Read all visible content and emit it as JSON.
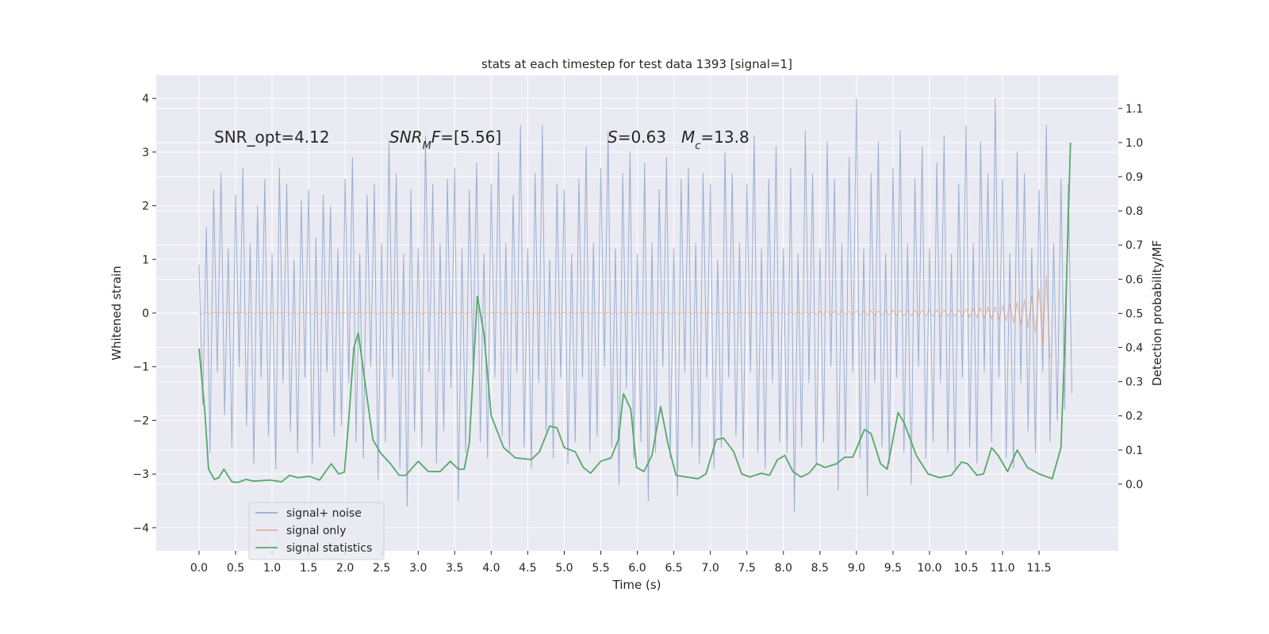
{
  "chart_data": {
    "type": "line",
    "title": "stats at each timestep for test data 1393 [signal=1]",
    "xlabel": "Time (s)",
    "ylabel": "Whitened strain",
    "y2label": "Detection probability/MF",
    "x": [
      0,
      0.05,
      0.1,
      0.15,
      0.2,
      0.25,
      0.3,
      0.35,
      0.4,
      0.45,
      0.5,
      0.55,
      0.6,
      0.65,
      0.7,
      0.75,
      0.8,
      0.85,
      0.9,
      0.95,
      1,
      1.05,
      1.1,
      1.15,
      1.2,
      1.25,
      1.3,
      1.35,
      1.4,
      1.45,
      1.5,
      1.55,
      1.6,
      1.65,
      1.7,
      1.75,
      1.8,
      1.85,
      1.9,
      1.95,
      2,
      2.05,
      2.1,
      2.15,
      2.2,
      2.25,
      2.3,
      2.35,
      2.4,
      2.45,
      2.5,
      2.55,
      2.6,
      2.65,
      2.7,
      2.75,
      2.8,
      2.85,
      2.9,
      2.95,
      3,
      3.05,
      3.1,
      3.15,
      3.2,
      3.25,
      3.3,
      3.35,
      3.4,
      3.45,
      3.5,
      3.55,
      3.6,
      3.65,
      3.7,
      3.75,
      3.8,
      3.85,
      3.9,
      3.95,
      4,
      4.05,
      4.1,
      4.15,
      4.2,
      4.25,
      4.3,
      4.35,
      4.4,
      4.45,
      4.5,
      4.55,
      4.6,
      4.65,
      4.7,
      4.75,
      4.8,
      4.85,
      4.9,
      4.95,
      5,
      5.05,
      5.1,
      5.15,
      5.2,
      5.25,
      5.3,
      5.35,
      5.4,
      5.45,
      5.5,
      5.55,
      5.6,
      5.65,
      5.7,
      5.75,
      5.8,
      5.85,
      5.9,
      5.95,
      6,
      6.05,
      6.1,
      6.15,
      6.2,
      6.25,
      6.3,
      6.35,
      6.4,
      6.45,
      6.5,
      6.55,
      6.6,
      6.65,
      6.7,
      6.75,
      6.8,
      6.85,
      6.9,
      6.95,
      7,
      7.05,
      7.1,
      7.15,
      7.2,
      7.25,
      7.3,
      7.35,
      7.4,
      7.45,
      7.5,
      7.55,
      7.6,
      7.65,
      7.7,
      7.75,
      7.8,
      7.85,
      7.9,
      7.95,
      8,
      8.05,
      8.1,
      8.15,
      8.2,
      8.25,
      8.3,
      8.35,
      8.4,
      8.45,
      8.5,
      8.55,
      8.6,
      8.65,
      8.7,
      8.75,
      8.8,
      8.85,
      8.9,
      8.95,
      9,
      9.05,
      9.1,
      9.15,
      9.2,
      9.25,
      9.3,
      9.35,
      9.4,
      9.45,
      9.5,
      9.55,
      9.6,
      9.65,
      9.7,
      9.75,
      9.8,
      9.85,
      9.9,
      9.95,
      10,
      10.05,
      10.1,
      10.15,
      10.2,
      10.25,
      10.3,
      10.35,
      10.4,
      10.45,
      10.5,
      10.55,
      10.6,
      10.65,
      10.7,
      10.75,
      10.8,
      10.85,
      10.9,
      10.95,
      11,
      11.05,
      11.1,
      11.15,
      11.2,
      11.25,
      11.3,
      11.35,
      11.4,
      11.45,
      11.5,
      11.55,
      11.6,
      11.65,
      11.7,
      11.75,
      11.8,
      11.85,
      11.9,
      11.95
    ],
    "series": [
      {
        "name": "signal+ noise",
        "color": "#4c72b0",
        "values": [
          0.9,
          -1.7,
          1.6,
          -2.6,
          2.3,
          -1.1,
          2.6,
          -1.9,
          1.2,
          -2.5,
          2.2,
          -1.0,
          2.7,
          -2.1,
          1.3,
          -2.8,
          2.0,
          -1.2,
          2.5,
          -2.3,
          1.1,
          -2.9,
          2.7,
          -1.3,
          2.4,
          -2.2,
          1.0,
          -2.6,
          2.1,
          -1.2,
          2.3,
          -2.8,
          1.4,
          -2.5,
          2.2,
          -1.1,
          2.0,
          -2.3,
          1.2,
          -2.1,
          2.5,
          -1.3,
          2.9,
          -2.4,
          1.1,
          -2.7,
          2.2,
          -1.0,
          2.4,
          -3.1,
          1.3,
          -2.4,
          3.2,
          -1.2,
          2.6,
          -2.9,
          1.1,
          -3.6,
          2.3,
          -2.2,
          1.2,
          -2.5,
          3.3,
          -1.1,
          2.4,
          -2.8,
          1.3,
          -2.2,
          2.5,
          -1.4,
          2.7,
          -3.5,
          1.2,
          -2.6,
          2.3,
          -1.0,
          2.8,
          -2.4,
          1.1,
          -2.7,
          2.4,
          -1.2,
          3.0,
          -2.3,
          1.3,
          -2.6,
          2.2,
          -1.1,
          3.5,
          -2.5,
          1.2,
          -2.9,
          2.6,
          -1.3,
          3.5,
          -2.2,
          1.0,
          -2.7,
          2.4,
          -1.2,
          2.3,
          -2.8,
          1.1,
          -2.4,
          2.5,
          -1.2,
          3.1,
          -2.6,
          1.3,
          -2.3,
          2.7,
          -1.0,
          3.4,
          -2.5,
          1.2,
          -3.2,
          2.6,
          -1.4,
          3.0,
          -2.7,
          1.1,
          -2.4,
          2.8,
          -3.5,
          1.3,
          -2.6,
          2.3,
          -1.0,
          2.9,
          -2.7,
          1.2,
          -3.4,
          2.5,
          -1.1,
          2.7,
          -2.5,
          1.3,
          -2.8,
          2.6,
          -1.2,
          2.4,
          -2.9,
          1.0,
          -2.5,
          3.0,
          -1.2,
          2.6,
          -2.3,
          1.3,
          -2.7,
          2.4,
          -1.1,
          3.3,
          -2.6,
          1.2,
          -2.9,
          2.5,
          -1.3,
          3.1,
          -2.4,
          1.2,
          -2.6,
          2.7,
          -3.7,
          1.1,
          -2.5,
          3.4,
          -1.3,
          2.6,
          -2.8,
          1.2,
          -2.4,
          3.2,
          -1.0,
          2.5,
          -3.3,
          1.3,
          -2.6,
          2.9,
          -1.1,
          4.0,
          -2.7,
          1.2,
          -3.4,
          2.6,
          -1.3,
          3.2,
          -2.5,
          1.1,
          -2.8,
          2.7,
          -1.2,
          3.4,
          -2.6,
          1.3,
          -3.2,
          2.5,
          -1.0,
          3.1,
          -2.7,
          1.2,
          -2.4,
          2.8,
          -1.3,
          3.3,
          -2.6,
          1.1,
          -2.9,
          2.4,
          -1.2,
          3.5,
          -2.5,
          1.3,
          -2.8,
          3.2,
          -1.1,
          2.6,
          -2.4,
          4.0,
          -1.2,
          2.5,
          -2.7,
          1.1,
          -2.9,
          3.0,
          -1.3,
          2.6,
          -2.2,
          1.2,
          -2.6,
          2.3,
          -1.1,
          3.5,
          -2.4,
          1.3,
          -2.0,
          2.5,
          -1.8,
          2.4,
          -1.5
        ]
      },
      {
        "name": "signal only",
        "color": "#dd8452",
        "values": [
          0.01,
          -0.01,
          0.01,
          -0.01,
          0.01,
          -0.01,
          0.01,
          -0.01,
          0.01,
          -0.01,
          0.01,
          -0.01,
          0.01,
          -0.01,
          0.01,
          -0.01,
          0.01,
          -0.01,
          0.01,
          -0.01,
          0.01,
          -0.01,
          0.01,
          -0.01,
          0.01,
          -0.01,
          0.01,
          -0.01,
          0.01,
          -0.01,
          0.01,
          -0.01,
          0.01,
          -0.01,
          0.01,
          -0.01,
          0.01,
          -0.01,
          0.01,
          -0.01,
          0.01,
          -0.01,
          0.01,
          -0.01,
          0.01,
          -0.01,
          0.01,
          -0.01,
          0.01,
          -0.01,
          0.01,
          -0.01,
          0.01,
          -0.01,
          0.01,
          -0.01,
          0.01,
          -0.01,
          0.01,
          -0.01,
          0.01,
          -0.01,
          0.01,
          -0.01,
          0.01,
          -0.01,
          0.01,
          -0.01,
          0.01,
          -0.01,
          0.01,
          -0.01,
          0.01,
          -0.01,
          0.01,
          -0.01,
          0.01,
          -0.01,
          0.01,
          -0.01,
          0.01,
          -0.01,
          0.01,
          -0.01,
          0.01,
          -0.01,
          0.01,
          -0.01,
          0.01,
          -0.01,
          0.01,
          -0.01,
          0.01,
          -0.01,
          0.01,
          -0.01,
          0.01,
          -0.01,
          0.01,
          -0.01,
          0.01,
          -0.01,
          0.01,
          -0.01,
          0.01,
          -0.01,
          0.01,
          -0.01,
          0.01,
          -0.01,
          0.01,
          -0.01,
          0.01,
          -0.01,
          0.01,
          -0.01,
          0.01,
          -0.01,
          0.01,
          -0.01,
          0.01,
          -0.01,
          0.01,
          -0.01,
          0.01,
          -0.01,
          0.01,
          -0.01,
          0.01,
          -0.01,
          0.01,
          -0.01,
          0.01,
          -0.01,
          0.01,
          -0.01,
          0.01,
          -0.01,
          0.01,
          -0.01,
          0.01,
          -0.01,
          0.01,
          -0.01,
          0.01,
          -0.01,
          0.01,
          -0.01,
          0.01,
          -0.01,
          0.01,
          -0.01,
          0.01,
          -0.01,
          0.01,
          -0.01,
          0.01,
          -0.01,
          0.01,
          -0.01,
          0.02,
          -0.02,
          0.02,
          -0.02,
          0.02,
          -0.02,
          0.02,
          -0.02,
          0.02,
          -0.02,
          0.03,
          -0.03,
          0.03,
          -0.03,
          0.03,
          -0.03,
          0.03,
          -0.03,
          0.03,
          -0.03,
          0.04,
          -0.04,
          0.04,
          -0.04,
          0.04,
          -0.04,
          0.04,
          -0.04,
          0.04,
          -0.04,
          0.05,
          -0.05,
          0.05,
          -0.05,
          0.05,
          -0.05,
          0.05,
          -0.05,
          0.05,
          -0.05,
          0.06,
          -0.06,
          0.06,
          -0.06,
          0.06,
          -0.06,
          0.06,
          -0.06,
          0.06,
          -0.06,
          0.08,
          -0.08,
          0.09,
          -0.09,
          0.1,
          -0.1,
          0.11,
          -0.11,
          0.12,
          -0.12,
          0.14,
          -0.15,
          0.17,
          -0.18,
          0.2,
          -0.22,
          0.25,
          -0.28,
          0.32,
          -0.38,
          0.45,
          -0.55,
          0.7,
          -0.85,
          null,
          null,
          null,
          null,
          null,
          null
        ]
      },
      {
        "name": "signal statistics",
        "color": "#55a868",
        "axis": "y2",
        "x": [
          0,
          0.08,
          0.13,
          0.21,
          0.27,
          0.34,
          0.45,
          0.53,
          0.64,
          0.75,
          0.97,
          1.13,
          1.24,
          1.35,
          1.51,
          1.65,
          1.81,
          1.91,
          1.99,
          2.05,
          2.12,
          2.18,
          2.27,
          2.38,
          2.49,
          2.62,
          2.74,
          2.83,
          3.0,
          3.14,
          3.3,
          3.44,
          3.55,
          3.63,
          3.7,
          3.81,
          3.9,
          4.0,
          4.17,
          4.33,
          4.55,
          4.66,
          4.8,
          4.9,
          5.0,
          5.15,
          5.26,
          5.36,
          5.5,
          5.64,
          5.74,
          5.81,
          5.91,
          5.99,
          6.09,
          6.2,
          6.32,
          6.42,
          6.53,
          6.67,
          6.83,
          6.94,
          7.08,
          7.18,
          7.32,
          7.43,
          7.54,
          7.7,
          7.81,
          7.92,
          8.02,
          8.13,
          8.24,
          8.35,
          8.46,
          8.57,
          8.73,
          8.84,
          8.95,
          9.11,
          9.2,
          9.33,
          9.42,
          9.57,
          9.66,
          9.82,
          9.98,
          10.14,
          10.3,
          10.44,
          10.52,
          10.65,
          10.74,
          10.85,
          10.94,
          11.07,
          11.2,
          11.34,
          11.5,
          11.68,
          11.8,
          11.85,
          11.93
        ],
        "values": [
          0.397,
          0.21,
          0.044,
          0.014,
          0.019,
          0.044,
          0.007,
          0.005,
          0.014,
          0.009,
          0.012,
          0.007,
          0.026,
          0.019,
          0.023,
          0.012,
          0.06,
          0.03,
          0.035,
          0.19,
          0.4,
          0.443,
          0.3,
          0.13,
          0.09,
          0.06,
          0.026,
          0.026,
          0.067,
          0.037,
          0.037,
          0.067,
          0.044,
          0.044,
          0.12,
          0.55,
          0.44,
          0.2,
          0.107,
          0.077,
          0.072,
          0.095,
          0.17,
          0.165,
          0.107,
          0.095,
          0.049,
          0.032,
          0.067,
          0.077,
          0.13,
          0.265,
          0.22,
          0.049,
          0.037,
          0.084,
          0.227,
          0.118,
          0.026,
          0.021,
          0.016,
          0.03,
          0.13,
          0.135,
          0.095,
          0.03,
          0.021,
          0.032,
          0.026,
          0.072,
          0.084,
          0.037,
          0.021,
          0.032,
          0.06,
          0.049,
          0.06,
          0.079,
          0.079,
          0.16,
          0.148,
          0.06,
          0.044,
          0.21,
          0.176,
          0.084,
          0.03,
          0.019,
          0.026,
          0.065,
          0.06,
          0.026,
          0.03,
          0.107,
          0.084,
          0.037,
          0.1,
          0.049,
          0.03,
          0.016,
          0.107,
          0.4,
          1.0
        ]
      }
    ],
    "xlim": [
      -0.586,
      12.585
    ],
    "ylim": [
      -4.43,
      4.43
    ],
    "y2lim": [
      -0.195,
      1.197
    ],
    "xticks": [
      {
        "value": 0,
        "label": "0.0"
      },
      0.5,
      {
        "value": 1,
        "label": "1.0"
      },
      1.5,
      {
        "value": 2,
        "label": "2.0"
      },
      2.5,
      {
        "value": 3,
        "label": "3.0"
      },
      3.5,
      {
        "value": 4,
        "label": "4.0"
      },
      4.5,
      {
        "value": 5,
        "label": "5.0"
      },
      5.5,
      {
        "value": 6,
        "label": "6.0"
      },
      6.5,
      {
        "value": 7,
        "label": "7.0"
      },
      7.5,
      {
        "value": 8,
        "label": "8.0"
      },
      8.5,
      {
        "value": 9,
        "label": "9.0"
      },
      9.5,
      {
        "value": 10,
        "label": "10.0"
      },
      10.5,
      {
        "value": 11,
        "label": "11.0"
      },
      11.5
    ],
    "yticks": [
      {
        "value": -4,
        "label": "−4"
      },
      {
        "value": -3,
        "label": "−3"
      },
      {
        "value": -2,
        "label": "−2"
      },
      {
        "value": -1,
        "label": "−1"
      },
      0,
      1,
      2,
      3,
      4
    ],
    "y2ticks": [
      {
        "value": 0,
        "label": "0.0"
      },
      0.1,
      0.2,
      0.3,
      0.4,
      0.5,
      0.6,
      0.7,
      0.8,
      0.9,
      {
        "value": 1,
        "label": "1.0"
      },
      1.1
    ],
    "grid": true,
    "legend": "lower left",
    "annotations": [
      [
        {
          "text": "SNR_opt=4.12"
        }
      ],
      [
        {
          "text": "SNR",
          "italic": true
        },
        {
          "text": "M",
          "italic": true,
          "sub": true
        },
        {
          "text": "F",
          "italic": true
        },
        {
          "text": "=[5.56]"
        }
      ],
      [
        {
          "text": "S",
          "italic": true
        },
        {
          "text": "=0.63"
        }
      ],
      [
        {
          "text": "M",
          "italic": true
        },
        {
          "text": "c",
          "italic": true,
          "sub": true
        },
        {
          "text": "=13.8"
        }
      ]
    ]
  }
}
